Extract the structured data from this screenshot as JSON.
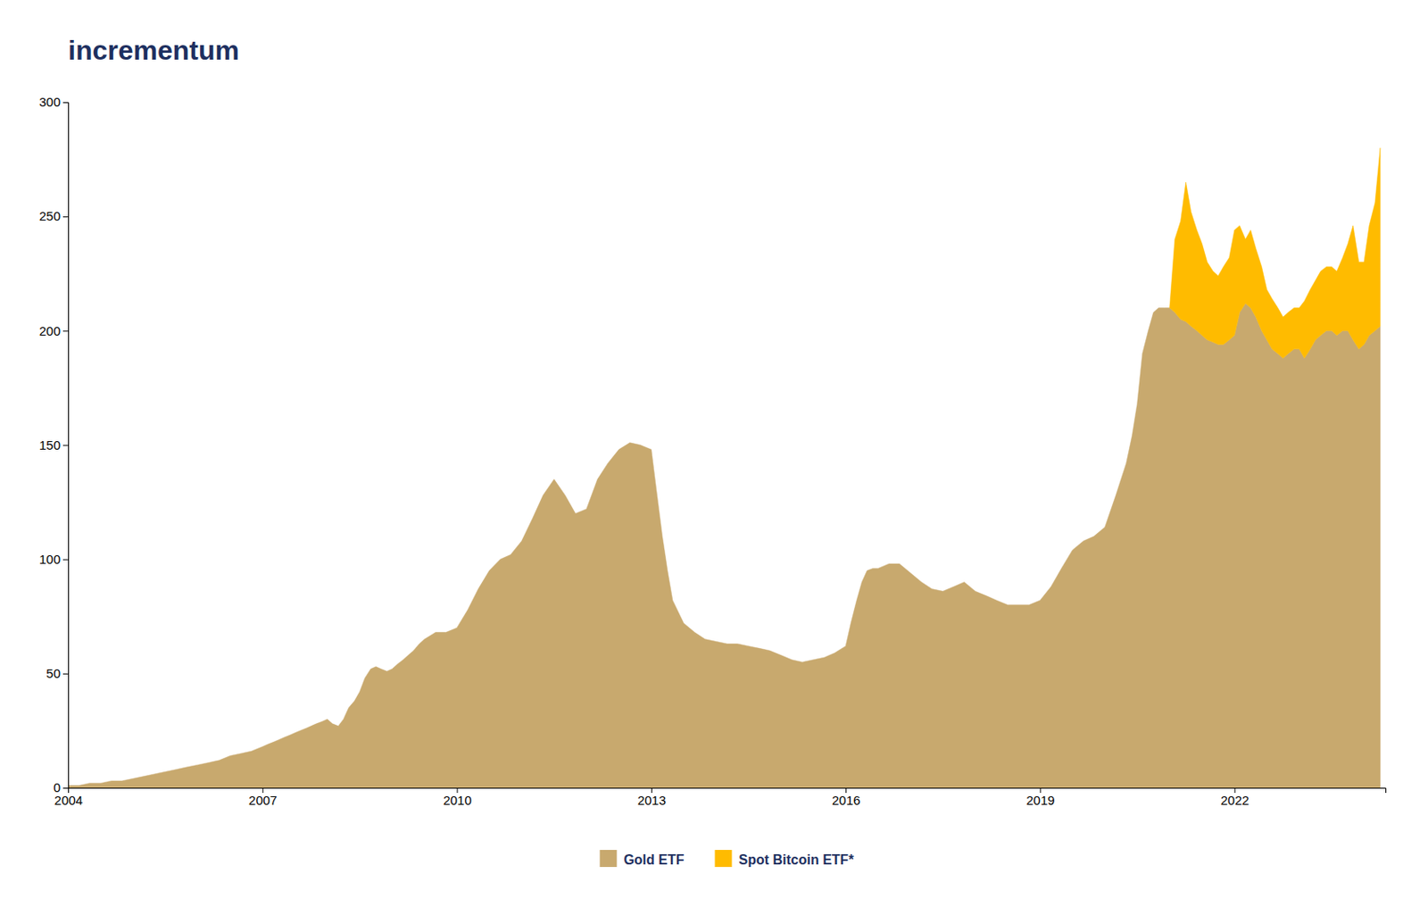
{
  "chart_data": {
    "type": "area",
    "stacked": true,
    "grid": false,
    "legend": "bottom",
    "annotations": [
      {
        "text": "incrementum"
      }
    ],
    "xlim": [
      2004.0,
      2024.33
    ],
    "xticks": [
      2004,
      2007,
      2010,
      2013,
      2016,
      2019,
      2022
    ],
    "ylim": [
      0,
      300
    ],
    "yticks": [
      0,
      50,
      100,
      150,
      200,
      250,
      300
    ],
    "x": [
      2004.0,
      2004.17,
      2004.33,
      2004.5,
      2004.67,
      2004.83,
      2005.0,
      2005.17,
      2005.33,
      2005.5,
      2005.67,
      2005.83,
      2006.0,
      2006.17,
      2006.33,
      2006.5,
      2006.67,
      2006.83,
      2007.0,
      2007.08,
      2007.17,
      2007.25,
      2007.33,
      2007.42,
      2007.5,
      2007.58,
      2007.67,
      2007.75,
      2007.83,
      2007.92,
      2008.0,
      2008.08,
      2008.17,
      2008.25,
      2008.33,
      2008.42,
      2008.5,
      2008.58,
      2008.67,
      2008.75,
      2008.83,
      2008.92,
      2009.0,
      2009.08,
      2009.17,
      2009.25,
      2009.33,
      2009.42,
      2009.5,
      2009.67,
      2009.83,
      2010.0,
      2010.17,
      2010.33,
      2010.5,
      2010.67,
      2010.83,
      2011.0,
      2011.17,
      2011.33,
      2011.5,
      2011.67,
      2011.83,
      2012.0,
      2012.17,
      2012.33,
      2012.5,
      2012.67,
      2012.83,
      2013.0,
      2013.08,
      2013.17,
      2013.25,
      2013.33,
      2013.5,
      2013.67,
      2013.83,
      2014.0,
      2014.17,
      2014.33,
      2014.5,
      2014.67,
      2014.83,
      2015.0,
      2015.17,
      2015.33,
      2015.5,
      2015.67,
      2015.83,
      2016.0,
      2016.08,
      2016.17,
      2016.25,
      2016.33,
      2016.42,
      2016.5,
      2016.67,
      2016.83,
      2017.0,
      2017.17,
      2017.33,
      2017.5,
      2017.67,
      2017.83,
      2018.0,
      2018.17,
      2018.33,
      2018.5,
      2018.67,
      2018.83,
      2019.0,
      2019.17,
      2019.33,
      2019.5,
      2019.67,
      2019.83,
      2020.0,
      2020.17,
      2020.33,
      2020.42,
      2020.5,
      2020.58,
      2020.67,
      2020.75,
      2020.83,
      2020.92,
      2021.0,
      2021.08,
      2021.17,
      2021.25,
      2021.33,
      2021.42,
      2021.5,
      2021.58,
      2021.67,
      2021.75,
      2021.83,
      2021.92,
      2022.0,
      2022.08,
      2022.17,
      2022.25,
      2022.33,
      2022.42,
      2022.5,
      2022.58,
      2022.67,
      2022.75,
      2022.83,
      2022.92,
      2023.0,
      2023.08,
      2023.17,
      2023.25,
      2023.33,
      2023.42,
      2023.5,
      2023.58,
      2023.67,
      2023.75,
      2023.83,
      2023.92,
      2024.0,
      2024.08,
      2024.17,
      2024.25
    ],
    "series": [
      {
        "name": "Gold ETF",
        "color": "#C8A96E",
        "values": [
          1,
          1,
          2,
          2,
          3,
          3,
          4,
          5,
          6,
          7,
          8,
          9,
          10,
          11,
          12,
          14,
          15,
          16,
          18,
          19,
          20,
          21,
          22,
          23,
          24,
          25,
          26,
          27,
          28,
          29,
          30,
          28,
          27,
          30,
          35,
          38,
          42,
          48,
          52,
          53,
          52,
          51,
          52,
          54,
          56,
          58,
          60,
          63,
          65,
          68,
          68,
          70,
          78,
          87,
          95,
          100,
          102,
          108,
          118,
          128,
          135,
          128,
          120,
          122,
          135,
          142,
          148,
          151,
          150,
          148,
          130,
          110,
          95,
          82,
          72,
          68,
          65,
          64,
          63,
          63,
          62,
          61,
          60,
          58,
          56,
          55,
          56,
          57,
          59,
          62,
          72,
          82,
          90,
          95,
          96,
          96,
          98,
          98,
          94,
          90,
          87,
          86,
          88,
          90,
          86,
          84,
          82,
          80,
          80,
          80,
          82,
          88,
          96,
          104,
          108,
          110,
          114,
          128,
          142,
          154,
          168,
          190,
          200,
          208,
          210,
          210,
          210,
          208,
          205,
          204,
          202,
          200,
          198,
          196,
          195,
          194,
          194,
          196,
          198,
          208,
          212,
          210,
          206,
          200,
          196,
          192,
          190,
          188,
          190,
          192,
          192,
          188,
          192,
          196,
          198,
          200,
          200,
          198,
          200,
          200,
          196,
          192,
          194,
          198,
          200,
          202
        ]
      },
      {
        "name": "Spot Bitcoin ETF*",
        "color": "#FFBB00",
        "values": [
          null,
          null,
          null,
          null,
          null,
          null,
          null,
          null,
          null,
          null,
          null,
          null,
          null,
          null,
          null,
          null,
          null,
          null,
          null,
          null,
          null,
          null,
          null,
          null,
          null,
          null,
          null,
          null,
          null,
          null,
          null,
          null,
          null,
          null,
          null,
          null,
          null,
          null,
          null,
          null,
          null,
          null,
          null,
          null,
          null,
          null,
          null,
          null,
          null,
          null,
          null,
          null,
          null,
          null,
          null,
          null,
          null,
          null,
          null,
          null,
          null,
          null,
          null,
          null,
          null,
          null,
          null,
          null,
          null,
          null,
          null,
          null,
          null,
          null,
          null,
          null,
          null,
          null,
          null,
          null,
          null,
          null,
          null,
          null,
          null,
          null,
          null,
          null,
          null,
          null,
          null,
          null,
          null,
          null,
          null,
          null,
          null,
          null,
          null,
          null,
          null,
          null,
          null,
          null,
          null,
          null,
          null,
          null,
          null,
          null,
          null,
          null,
          null,
          null,
          null,
          null,
          null,
          null,
          null,
          null,
          null,
          null,
          null,
          null,
          null,
          null,
          0,
          32,
          43,
          61,
          50,
          44,
          40,
          34,
          31,
          30,
          34,
          36,
          46,
          38,
          28,
          34,
          30,
          28,
          22,
          22,
          20,
          18,
          18,
          18,
          18,
          25,
          26,
          26,
          28,
          28,
          28,
          28,
          32,
          38,
          50,
          38,
          36,
          48,
          56,
          78
        ]
      }
    ]
  }
}
